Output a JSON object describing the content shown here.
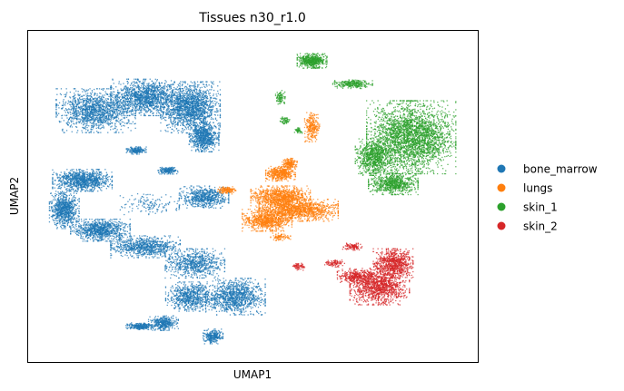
{
  "chart_data": {
    "type": "scatter",
    "title": "Tissues n30_r1.0",
    "xlabel": "UMAP1",
    "ylabel": "UMAP2",
    "xlim": [
      0,
      100
    ],
    "ylim": [
      0,
      100
    ],
    "grid": false,
    "ticks": false,
    "legend_placement": "right",
    "series": [
      {
        "name": "bone_marrow",
        "color": "#1f77b4",
        "clusters": [
          {
            "cx": 15,
            "cy": 76,
            "rx": 8,
            "ry": 6,
            "weight": 1.6
          },
          {
            "cx": 26,
            "cy": 80,
            "rx": 7,
            "ry": 5,
            "weight": 1.5
          },
          {
            "cx": 36,
            "cy": 77,
            "rx": 6,
            "ry": 7,
            "weight": 1.9
          },
          {
            "cx": 39,
            "cy": 68,
            "rx": 3,
            "ry": 4,
            "weight": 0.8
          },
          {
            "cx": 12,
            "cy": 55,
            "rx": 6,
            "ry": 3,
            "weight": 1.1
          },
          {
            "cx": 8,
            "cy": 46,
            "rx": 3,
            "ry": 5,
            "weight": 0.9
          },
          {
            "cx": 16,
            "cy": 40,
            "rx": 6,
            "ry": 3,
            "weight": 1.0
          },
          {
            "cx": 26,
            "cy": 35,
            "rx": 7,
            "ry": 3,
            "weight": 0.9
          },
          {
            "cx": 39,
            "cy": 50,
            "rx": 5,
            "ry": 3,
            "weight": 0.7
          },
          {
            "cx": 37,
            "cy": 30,
            "rx": 6,
            "ry": 4,
            "weight": 0.8
          },
          {
            "cx": 46,
            "cy": 20,
            "rx": 6,
            "ry": 5,
            "weight": 1.2
          },
          {
            "cx": 36,
            "cy": 20,
            "rx": 5,
            "ry": 4,
            "weight": 0.8
          },
          {
            "cx": 30,
            "cy": 12,
            "rx": 3,
            "ry": 2,
            "weight": 0.4
          },
          {
            "cx": 41,
            "cy": 8,
            "rx": 2,
            "ry": 2,
            "weight": 0.3
          },
          {
            "cx": 25,
            "cy": 11,
            "rx": 3,
            "ry": 1,
            "weight": 0.3
          },
          {
            "cx": 24,
            "cy": 64,
            "rx": 2,
            "ry": 1,
            "weight": 0.2
          },
          {
            "cx": 31,
            "cy": 58,
            "rx": 2,
            "ry": 1,
            "weight": 0.2
          },
          {
            "cx": 27,
            "cy": 48,
            "rx": 6,
            "ry": 3,
            "weight": 0.15
          }
        ]
      },
      {
        "name": "lungs",
        "color": "#ff7f0e",
        "clusters": [
          {
            "cx": 56,
            "cy": 50,
            "rx": 6,
            "ry": 3,
            "weight": 1.1
          },
          {
            "cx": 60,
            "cy": 46,
            "rx": 8,
            "ry": 3,
            "weight": 1.3
          },
          {
            "cx": 53,
            "cy": 43,
            "rx": 5,
            "ry": 3,
            "weight": 0.9
          },
          {
            "cx": 56,
            "cy": 57,
            "rx": 3,
            "ry": 2,
            "weight": 0.5
          },
          {
            "cx": 58,
            "cy": 60,
            "rx": 1.5,
            "ry": 1.5,
            "weight": 0.2
          },
          {
            "cx": 63,
            "cy": 71,
            "rx": 1.5,
            "ry": 4,
            "weight": 0.3
          },
          {
            "cx": 44,
            "cy": 52,
            "rx": 2,
            "ry": 1,
            "weight": 0.15
          },
          {
            "cx": 56,
            "cy": 38,
            "rx": 2,
            "ry": 1,
            "weight": 0.1
          }
        ]
      },
      {
        "name": "skin_1",
        "color": "#2ca02c",
        "clusters": [
          {
            "cx": 85,
            "cy": 68,
            "rx": 9,
            "ry": 10,
            "weight": 3.2
          },
          {
            "cx": 77,
            "cy": 62,
            "rx": 4,
            "ry": 5,
            "weight": 0.9
          },
          {
            "cx": 81,
            "cy": 54,
            "rx": 5,
            "ry": 3,
            "weight": 0.8
          },
          {
            "cx": 63,
            "cy": 91,
            "rx": 3,
            "ry": 2,
            "weight": 0.6
          },
          {
            "cx": 72,
            "cy": 84,
            "rx": 4,
            "ry": 1.2,
            "weight": 0.3
          },
          {
            "cx": 56,
            "cy": 80,
            "rx": 1,
            "ry": 2,
            "weight": 0.1
          },
          {
            "cx": 57,
            "cy": 73,
            "rx": 1,
            "ry": 1,
            "weight": 0.06
          },
          {
            "cx": 60,
            "cy": 70,
            "rx": 0.8,
            "ry": 0.8,
            "weight": 0.05
          }
        ]
      },
      {
        "name": "skin_2",
        "color": "#d62728",
        "clusters": [
          {
            "cx": 78,
            "cy": 23,
            "rx": 6,
            "ry": 5,
            "weight": 1.3
          },
          {
            "cx": 81,
            "cy": 30,
            "rx": 4,
            "ry": 4,
            "weight": 0.9
          },
          {
            "cx": 73,
            "cy": 26,
            "rx": 4,
            "ry": 2,
            "weight": 0.4
          },
          {
            "cx": 72,
            "cy": 35,
            "rx": 2,
            "ry": 1,
            "weight": 0.12
          },
          {
            "cx": 68,
            "cy": 30,
            "rx": 2,
            "ry": 1,
            "weight": 0.1
          },
          {
            "cx": 60,
            "cy": 29,
            "rx": 1.5,
            "ry": 1,
            "weight": 0.08
          }
        ]
      }
    ]
  }
}
